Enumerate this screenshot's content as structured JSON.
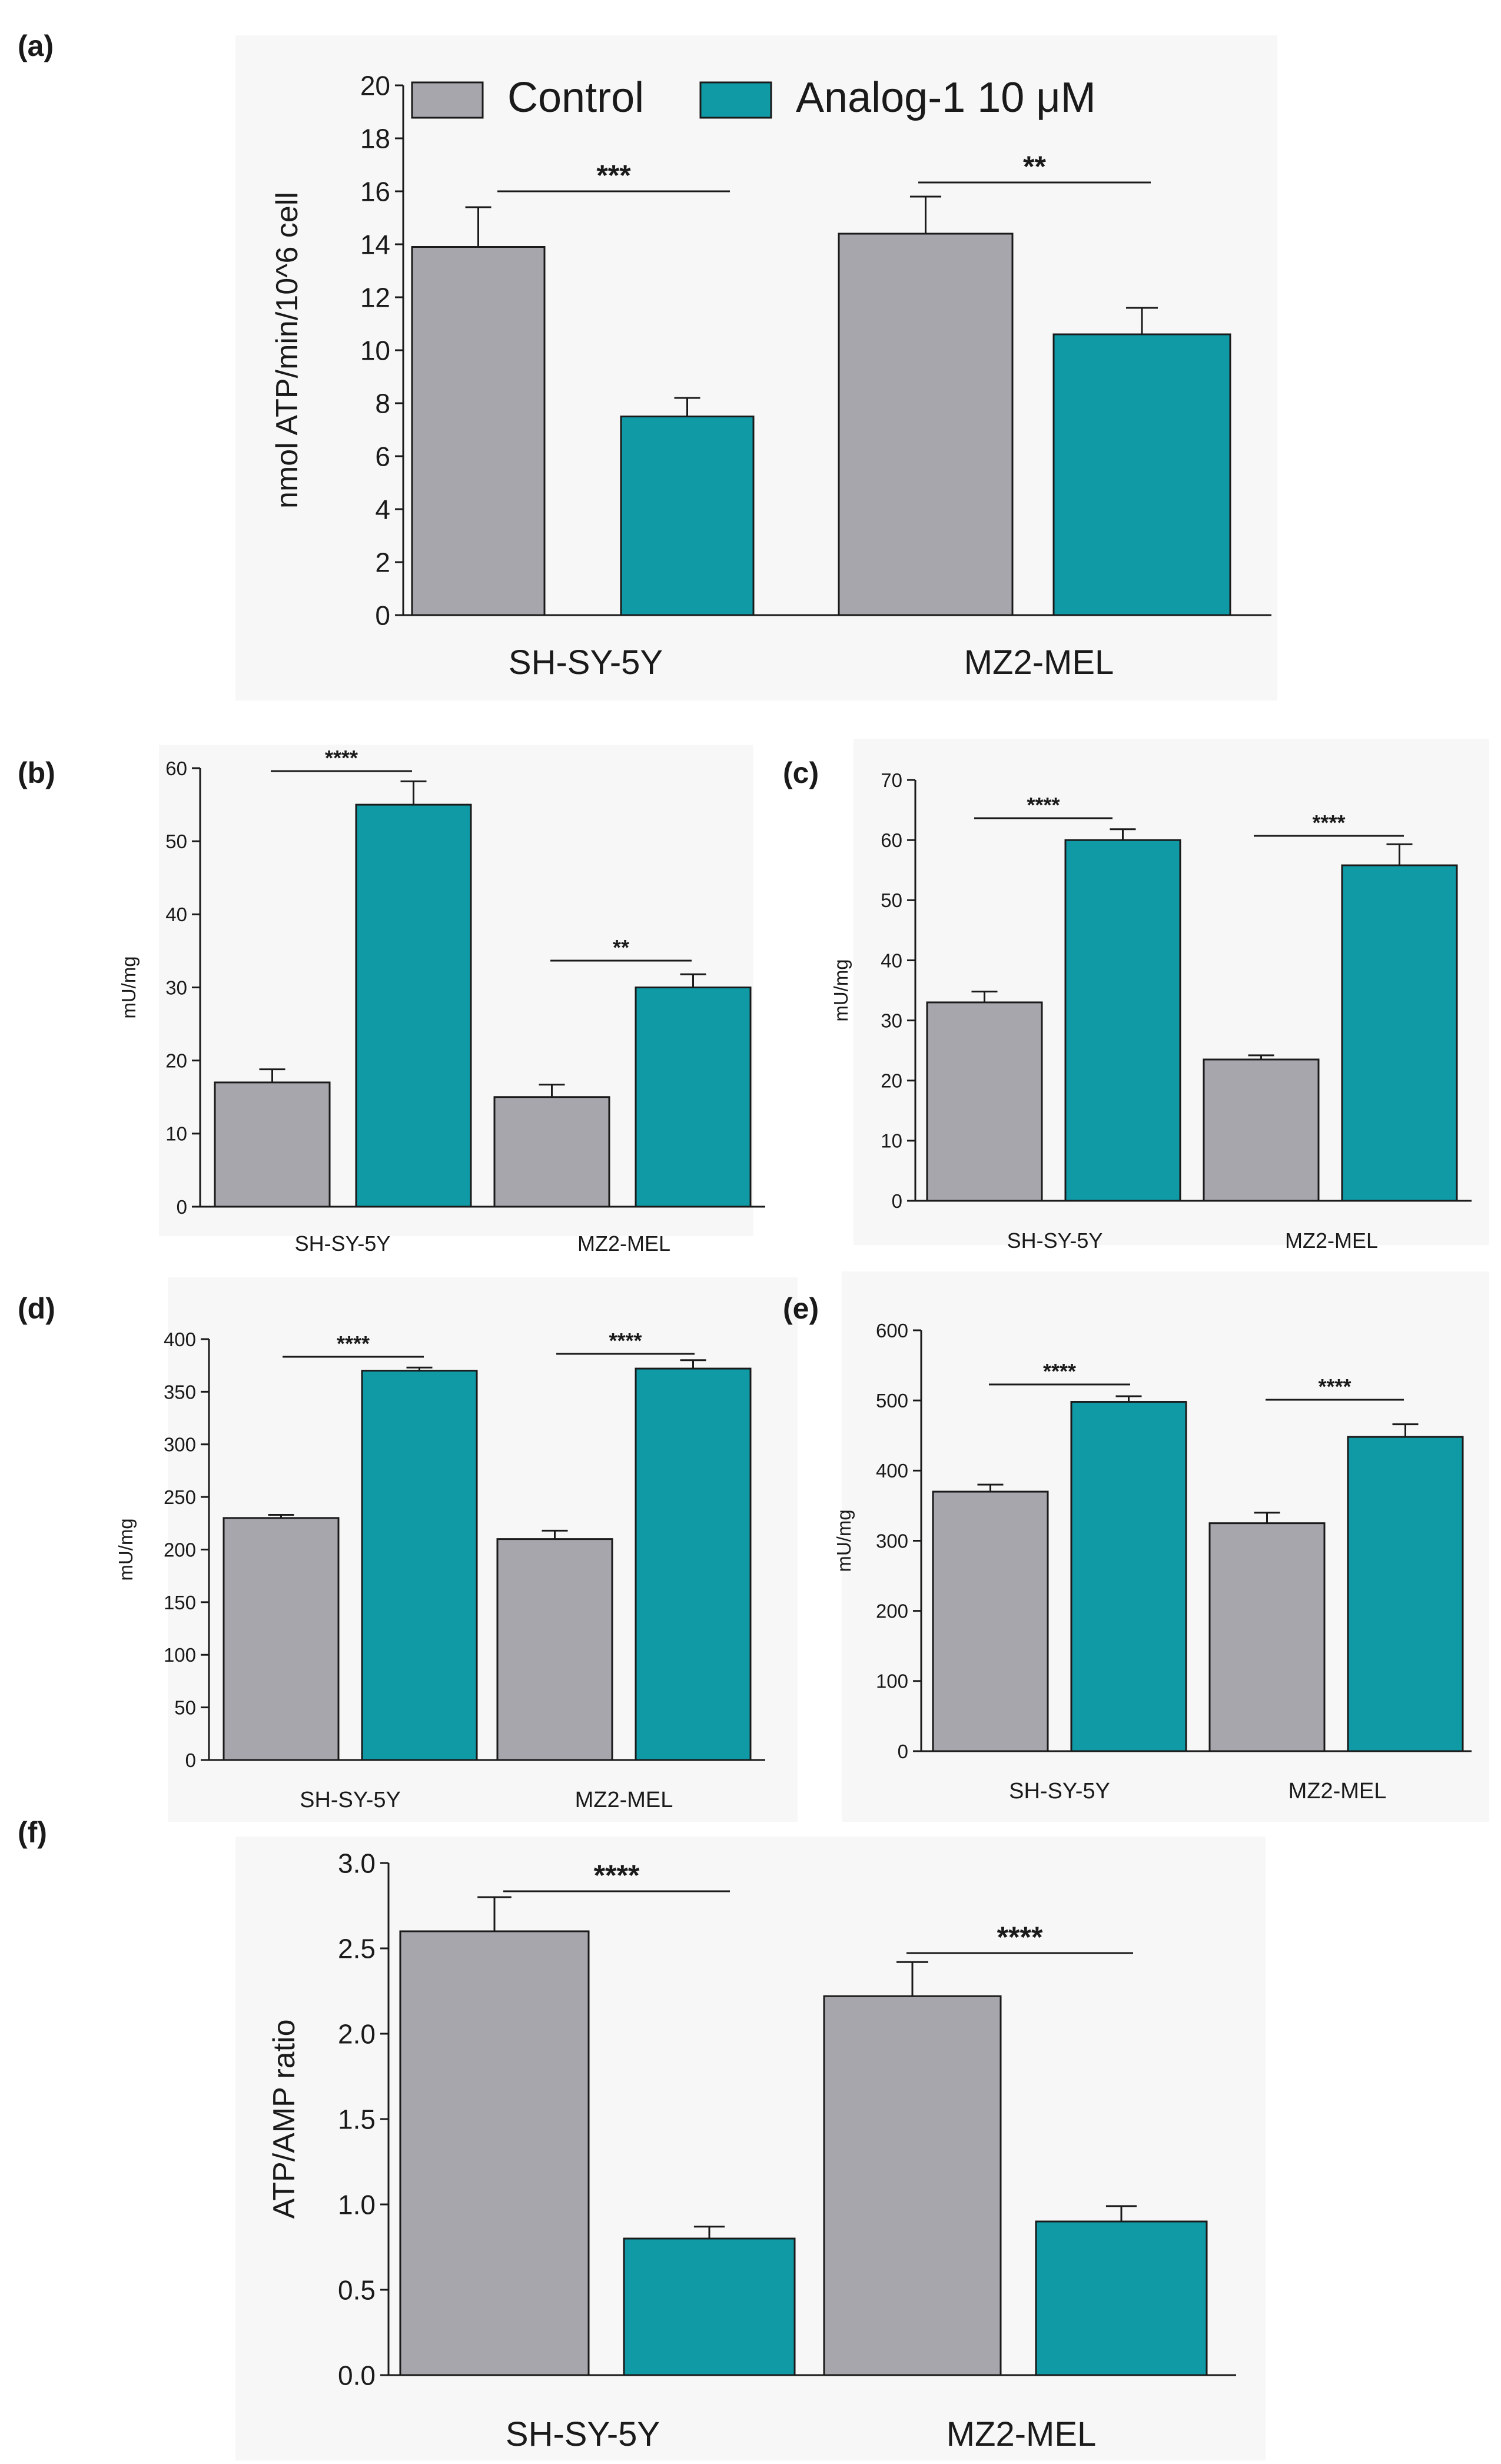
{
  "colors": {
    "control": "#a7a6ad",
    "treated": "#0f9aa6",
    "axis": "#1a1a1a",
    "panel_bg": "#f7f7f7"
  },
  "legend": {
    "control": "Control",
    "treated": "Analog-1 10 μM",
    "position": "top"
  },
  "chart_data": [
    {
      "type": "bar",
      "panel": "(a)",
      "categories": [
        "SH-SY-5Y",
        "MZ2-MEL"
      ],
      "series": [
        {
          "name": "Control",
          "values": [
            13.9,
            14.4
          ],
          "errors": [
            1.5,
            1.4
          ]
        },
        {
          "name": "Analog-1 10 μM",
          "values": [
            7.5,
            10.6
          ],
          "errors": [
            0.7,
            1.0
          ]
        }
      ],
      "ylabel": "nmol ATP/min/10^6 cell",
      "xlabel": "",
      "ylim": [
        0,
        20
      ],
      "yticks": [
        "0",
        "2",
        "4",
        "6",
        "8",
        "10",
        "12",
        "14",
        "16",
        "18",
        "20"
      ],
      "significance": [
        "***",
        "**"
      ]
    },
    {
      "type": "bar",
      "panel": "(b)",
      "categories": [
        "SH-SY-5Y",
        "MZ2-MEL"
      ],
      "series": [
        {
          "name": "Control",
          "values": [
            17,
            15
          ],
          "errors": [
            1.8,
            1.7
          ]
        },
        {
          "name": "Analog-1 10 μM",
          "values": [
            55,
            30
          ],
          "errors": [
            3.2,
            1.8
          ]
        }
      ],
      "ylabel": "mU/mg",
      "xlabel": "",
      "ylim": [
        0,
        60
      ],
      "yticks": [
        "0",
        "10",
        "20",
        "30",
        "40",
        "50",
        "60"
      ],
      "significance": [
        "****",
        "**"
      ]
    },
    {
      "type": "bar",
      "panel": "(c)",
      "categories": [
        "SH-SY-5Y",
        "MZ2-MEL"
      ],
      "series": [
        {
          "name": "Control",
          "values": [
            33,
            23.5
          ],
          "errors": [
            1.8,
            0.7
          ]
        },
        {
          "name": "Analog-1 10 μM",
          "values": [
            60,
            55.8
          ],
          "errors": [
            1.8,
            3.5
          ]
        }
      ],
      "ylabel": "mU/mg",
      "xlabel": "",
      "ylim": [
        0,
        70
      ],
      "yticks": [
        "0",
        "10",
        "20",
        "30",
        "40",
        "50",
        "60",
        "70"
      ],
      "significance": [
        "****",
        "****"
      ]
    },
    {
      "type": "bar",
      "panel": "(d)",
      "categories": [
        "SH-SY-5Y",
        "MZ2-MEL"
      ],
      "series": [
        {
          "name": "Control",
          "values": [
            230,
            210
          ],
          "errors": [
            3,
            8
          ]
        },
        {
          "name": "Analog-1 10 μM",
          "values": [
            370,
            372
          ],
          "errors": [
            3,
            8
          ]
        }
      ],
      "ylabel": "mU/mg",
      "xlabel": "",
      "ylim": [
        0,
        400
      ],
      "yticks": [
        "0",
        "50",
        "100",
        "150",
        "200",
        "250",
        "300",
        "350",
        "400"
      ],
      "significance": [
        "****",
        "****"
      ]
    },
    {
      "type": "bar",
      "panel": "(e)",
      "categories": [
        "SH-SY-5Y",
        "MZ2-MEL"
      ],
      "series": [
        {
          "name": "Control",
          "values": [
            370,
            325
          ],
          "errors": [
            10,
            15
          ]
        },
        {
          "name": "Analog-1 10 μM",
          "values": [
            498,
            448
          ],
          "errors": [
            8,
            18
          ]
        }
      ],
      "ylabel": "mU/mg",
      "xlabel": "",
      "ylim": [
        0,
        600
      ],
      "yticks": [
        "0",
        "100",
        "200",
        "300",
        "400",
        "500",
        "600"
      ],
      "significance": [
        "****",
        "****"
      ]
    },
    {
      "type": "bar",
      "panel": "(f)",
      "categories": [
        "SH-SY-5Y",
        "MZ2-MEL"
      ],
      "series": [
        {
          "name": "Control",
          "values": [
            2.6,
            2.22
          ],
          "errors": [
            0.2,
            0.2
          ]
        },
        {
          "name": "Analog-1 10 μM",
          "values": [
            0.8,
            0.9
          ],
          "errors": [
            0.07,
            0.09
          ]
        }
      ],
      "ylabel": "ATP/AMP ratio",
      "xlabel": "",
      "ylim": [
        0,
        3
      ],
      "yticks": [
        "0.0",
        "0.5",
        "1.0",
        "1.5",
        "2.0",
        "2.5",
        "3.0"
      ],
      "significance": [
        "****",
        "****"
      ]
    }
  ]
}
